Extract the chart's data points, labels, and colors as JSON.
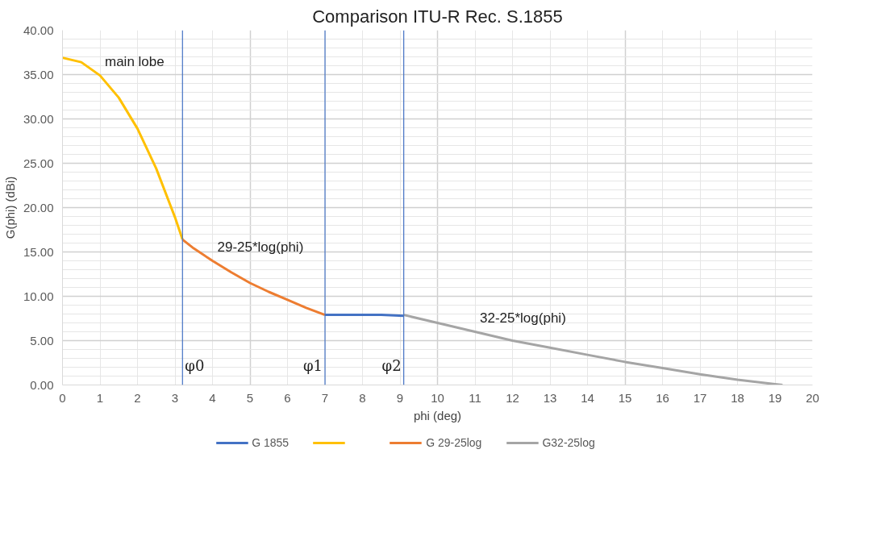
{
  "chart_data": {
    "type": "line",
    "title": "Comparison ITU-R Rec. S.1855",
    "xlabel": "phi (deg)",
    "ylabel": "G(phi) (dBi)",
    "xlim": [
      0,
      20
    ],
    "xticks": [
      0,
      1,
      2,
      3,
      4,
      5,
      6,
      7,
      8,
      9,
      10,
      11,
      12,
      13,
      14,
      15,
      16,
      17,
      18,
      19,
      20
    ],
    "ylim": [
      0,
      40
    ],
    "yticks": [
      {
        "value": 0,
        "label": "0.00"
      },
      {
        "value": 5,
        "label": "5.00"
      },
      {
        "value": 10,
        "label": "10.00"
      },
      {
        "value": 15,
        "label": "15.00"
      },
      {
        "value": 20,
        "label": "20.00"
      },
      {
        "value": 25,
        "label": "25.00"
      },
      {
        "value": 30,
        "label": "30.00"
      },
      {
        "value": 35,
        "label": "35.00"
      },
      {
        "value": 40,
        "label": "40.00"
      }
    ],
    "grid": true,
    "legend": "bottom",
    "marker": "none",
    "line_style": "solid",
    "series": [
      {
        "name": "G 1855",
        "color": "#4472c4",
        "x": [
          7,
          8,
          8.5,
          9.1
        ],
        "values": [
          7.9,
          7.9,
          7.9,
          7.8
        ]
      },
      {
        "color": "#ffc000",
        "x": [
          0,
          0.5,
          1,
          1.5,
          2,
          2.5,
          3,
          3.2
        ],
        "values": [
          36.9,
          36.4,
          34.9,
          32.4,
          28.9,
          24.4,
          18.9,
          16.4
        ]
      },
      {
        "name": "G 29-25log",
        "color": "#ed7d31",
        "x": [
          3.2,
          3.5,
          4,
          4.5,
          5,
          5.5,
          6,
          6.5,
          7
        ],
        "values": [
          16.4,
          15.4,
          14.0,
          12.7,
          11.5,
          10.5,
          9.6,
          8.7,
          7.9
        ]
      },
      {
        "name": "G32-25log",
        "color": "#a5a5a5",
        "x": [
          9.1,
          10,
          11,
          12,
          13,
          14,
          15,
          16,
          17,
          18,
          19,
          19.2
        ],
        "values": [
          7.9,
          7.0,
          6.0,
          5.0,
          4.2,
          3.4,
          2.6,
          1.9,
          1.2,
          0.6,
          0.1,
          0
        ]
      }
    ],
    "ref_lines": [
      {
        "axis": "x",
        "value": 3.2,
        "label": "φ0",
        "color": "#4472c4"
      },
      {
        "axis": "x",
        "value": 7,
        "label": "φ1",
        "color": "#4472c4"
      },
      {
        "axis": "x",
        "value": 9.1,
        "label": "φ2",
        "color": "#4472c4"
      }
    ],
    "annotations": [
      {
        "text": "main lobe",
        "x": 1,
        "y": 34.9
      },
      {
        "text": "29-25*log(phi)",
        "x": 4,
        "y": 14.0
      },
      {
        "text": "32-25*log(phi)",
        "x": 11,
        "y": 6.0
      }
    ]
  }
}
